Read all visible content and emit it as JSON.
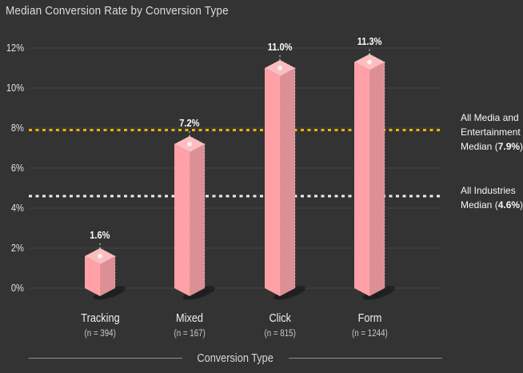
{
  "header": {
    "title": "Median Conversion Rate by Conversion Type"
  },
  "colors": {
    "background": "#333333",
    "grid": "#454545",
    "axis_rule": "#8f8f8f",
    "tick_text": "#e2e2e2",
    "value_label_text": "#fafafa",
    "category_text": "#f0f0f0",
    "n_text": "#c9c9c9",
    "annotation_text": "#f7f7f7",
    "marker_dot": "#f4f1ec",
    "leader_dash": "#dddad5",
    "bar_shadow": "rgba(0,0,0,0.38)",
    "bar_left_face": "#ffa1a6",
    "bar_right_face": "#dc8f94",
    "bar_top_face": "#fdbcc0",
    "bar_edge_dash": "rgba(255,255,255,0.4)"
  },
  "chart_data": {
    "type": "bar",
    "title": "Median Conversion Rate by Conversion Type",
    "xlabel": "Conversion Type",
    "ylabel": "",
    "ylim": [
      0,
      12
    ],
    "yticks": [
      0,
      2,
      4,
      6,
      8,
      10,
      12
    ],
    "ytick_suffix": "%",
    "grid": true,
    "legend": "none",
    "categories": [
      "Tracking",
      "Mixed",
      "Click",
      "Form"
    ],
    "sample_sizes": [
      "(n = 394)",
      "(n = 167)",
      "(n = 815)",
      "(n = 1244)"
    ],
    "values": [
      1.6,
      7.2,
      11.0,
      11.3
    ],
    "value_labels": [
      "1.6%",
      "7.2%",
      "11.0%",
      "11.3%"
    ],
    "reference_lines": [
      {
        "value": 7.9,
        "color": "#eab308",
        "label_lines": [
          "All Media and",
          "Entertainment",
          "Median (7.9%)"
        ],
        "bold_text": "7.9%"
      },
      {
        "value": 4.6,
        "color": "#ececec",
        "label_lines": [
          "All Industries",
          "Median (4.6%)"
        ],
        "bold_text": "4.6%"
      }
    ]
  }
}
